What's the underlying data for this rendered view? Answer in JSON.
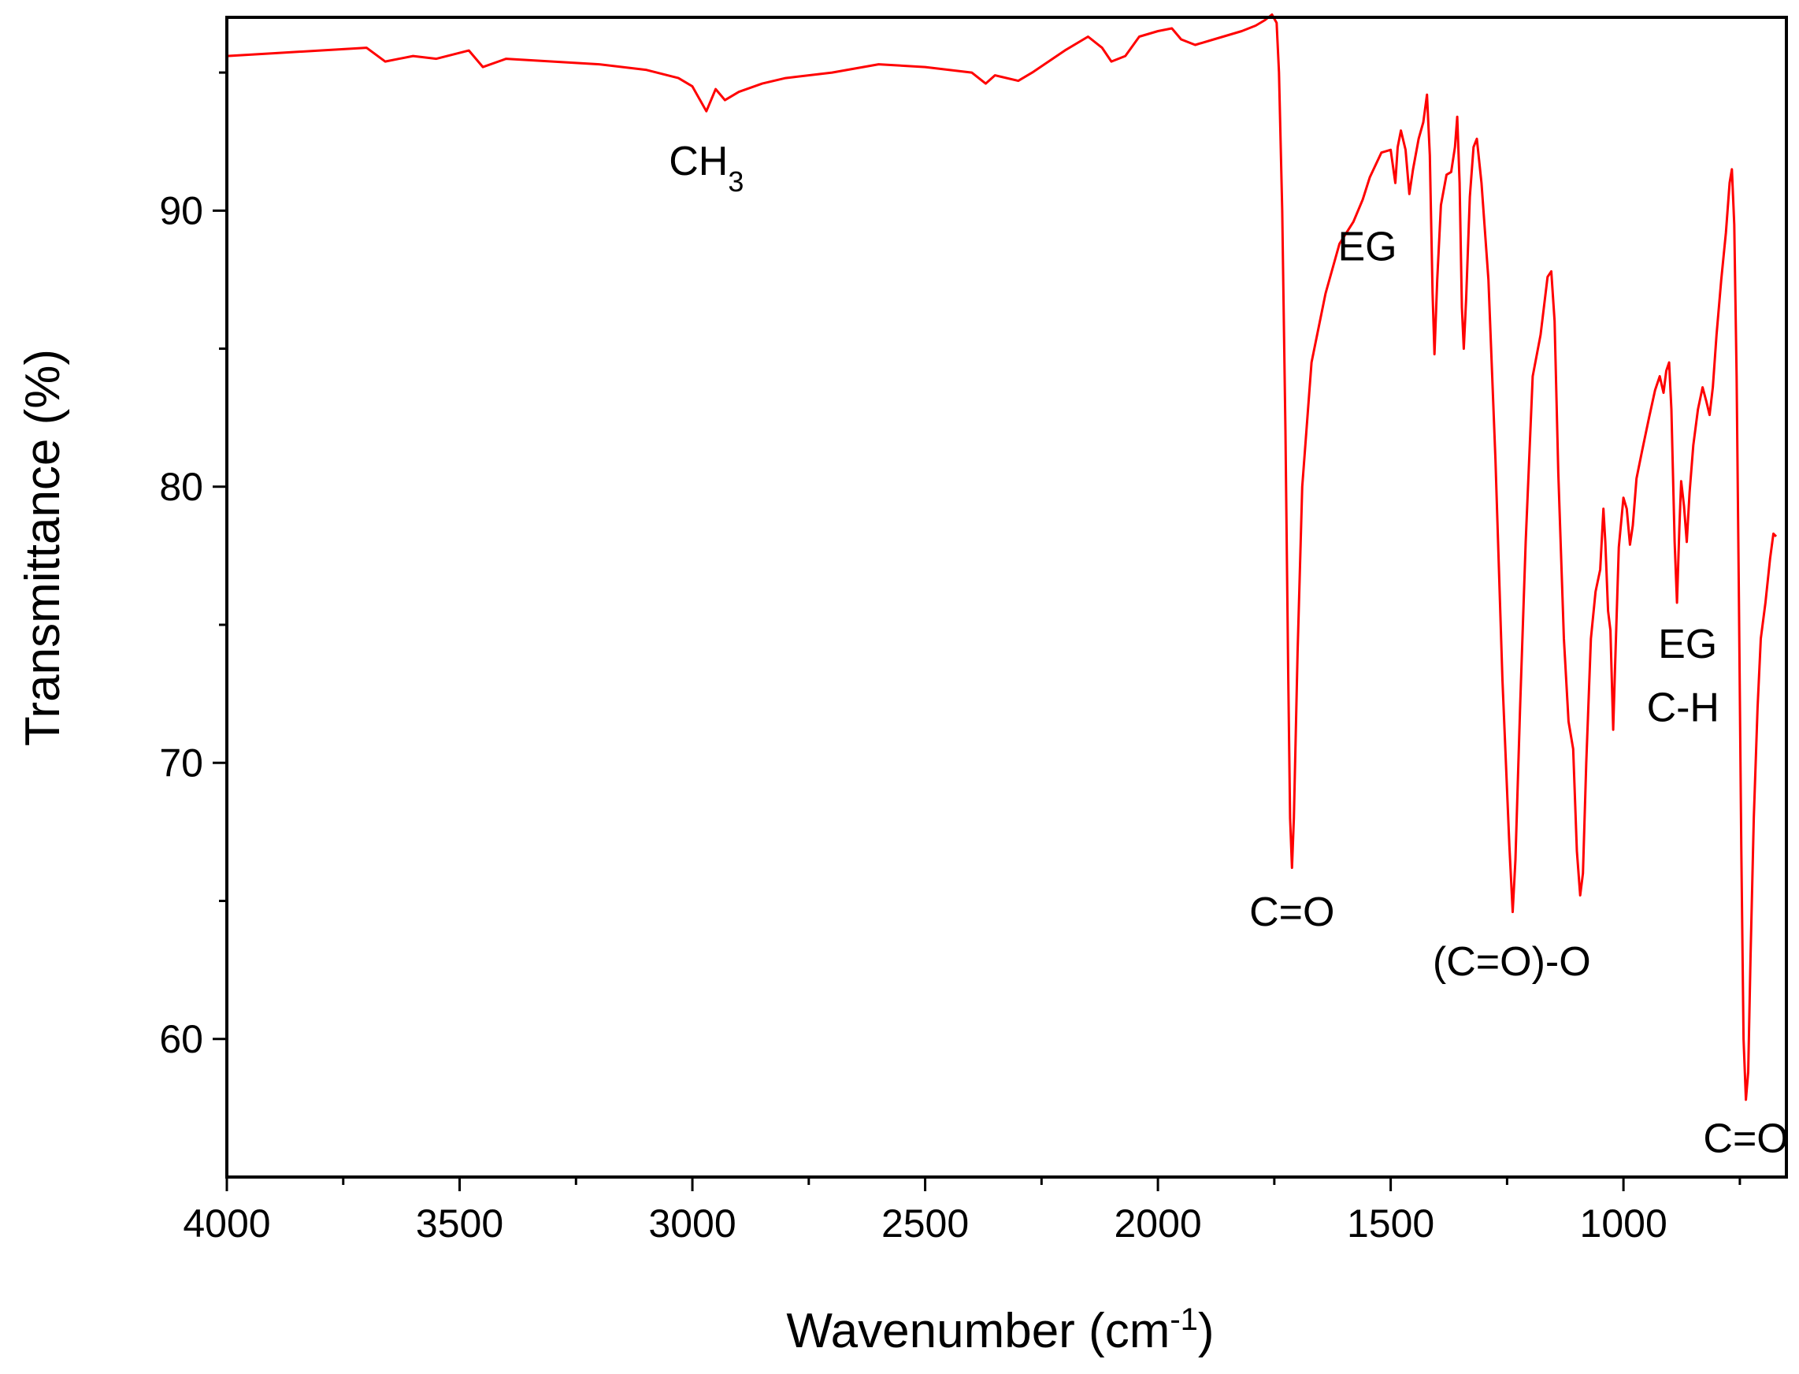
{
  "chart_data": {
    "type": "line",
    "xlabel": "Wavenumber (cm",
    "xlabel_superscript": "-1",
    "xlabel_suffix": ")",
    "ylabel": "Transmittance (%)",
    "xlim": [
      4000,
      650
    ],
    "ylim": [
      55,
      97
    ],
    "x_ticks": [
      {
        "value": 4000,
        "label": "4000"
      },
      {
        "value": 3500,
        "label": "3500"
      },
      {
        "value": 3000,
        "label": "3000"
      },
      {
        "value": 2500,
        "label": "2500"
      },
      {
        "value": 2000,
        "label": "2000"
      },
      {
        "value": 1500,
        "label": "1500"
      },
      {
        "value": 1000,
        "label": "1000"
      }
    ],
    "x_minor_ticks": [
      3750,
      3250,
      2750,
      2250,
      1750,
      1250,
      750
    ],
    "y_ticks": [
      {
        "value": 60,
        "label": "60"
      },
      {
        "value": 70,
        "label": "70"
      },
      {
        "value": 80,
        "label": "80"
      },
      {
        "value": 90,
        "label": "90"
      }
    ],
    "y_minor_ticks": [
      65,
      75,
      85,
      95
    ],
    "grid": false,
    "legend": "none",
    "series": [
      {
        "color": "#ff0000",
        "points": [
          [
            4000,
            95.6
          ],
          [
            3900,
            95.7
          ],
          [
            3800,
            95.8
          ],
          [
            3700,
            95.9
          ],
          [
            3660,
            95.4
          ],
          [
            3600,
            95.6
          ],
          [
            3550,
            95.5
          ],
          [
            3480,
            95.8
          ],
          [
            3450,
            95.2
          ],
          [
            3400,
            95.5
          ],
          [
            3300,
            95.4
          ],
          [
            3200,
            95.3
          ],
          [
            3100,
            95.1
          ],
          [
            3030,
            94.8
          ],
          [
            3000,
            94.5
          ],
          [
            2970,
            93.6
          ],
          [
            2950,
            94.4
          ],
          [
            2930,
            94.0
          ],
          [
            2900,
            94.3
          ],
          [
            2850,
            94.6
          ],
          [
            2800,
            94.8
          ],
          [
            2700,
            95.0
          ],
          [
            2600,
            95.3
          ],
          [
            2500,
            95.2
          ],
          [
            2400,
            95.0
          ],
          [
            2370,
            94.6
          ],
          [
            2350,
            94.9
          ],
          [
            2300,
            94.7
          ],
          [
            2270,
            95.0
          ],
          [
            2200,
            95.8
          ],
          [
            2150,
            96.3
          ],
          [
            2120,
            95.9
          ],
          [
            2100,
            95.4
          ],
          [
            2070,
            95.6
          ],
          [
            2040,
            96.3
          ],
          [
            2000,
            96.5
          ],
          [
            1970,
            96.6
          ],
          [
            1950,
            96.2
          ],
          [
            1920,
            96.0
          ],
          [
            1880,
            96.2
          ],
          [
            1820,
            96.5
          ],
          [
            1790,
            96.7
          ],
          [
            1770,
            96.9
          ],
          [
            1755,
            97.1
          ],
          [
            1745,
            96.8
          ],
          [
            1740,
            95.0
          ],
          [
            1733,
            90.0
          ],
          [
            1726,
            82.0
          ],
          [
            1720,
            73.0
          ],
          [
            1716,
            68.0
          ],
          [
            1712,
            66.2
          ],
          [
            1708,
            68.0
          ],
          [
            1700,
            74.0
          ],
          [
            1690,
            80.0
          ],
          [
            1670,
            84.5
          ],
          [
            1640,
            87.0
          ],
          [
            1610,
            88.8
          ],
          [
            1580,
            89.6
          ],
          [
            1560,
            90.4
          ],
          [
            1545,
            91.2
          ],
          [
            1520,
            92.1
          ],
          [
            1500,
            92.2
          ],
          [
            1490,
            91.0
          ],
          [
            1485,
            92.3
          ],
          [
            1478,
            92.9
          ],
          [
            1468,
            92.2
          ],
          [
            1460,
            90.6
          ],
          [
            1452,
            91.5
          ],
          [
            1440,
            92.6
          ],
          [
            1430,
            93.2
          ],
          [
            1422,
            94.2
          ],
          [
            1416,
            92.0
          ],
          [
            1410,
            87.0
          ],
          [
            1406,
            84.8
          ],
          [
            1400,
            87.5
          ],
          [
            1392,
            90.2
          ],
          [
            1380,
            91.3
          ],
          [
            1370,
            91.4
          ],
          [
            1362,
            92.3
          ],
          [
            1357,
            93.4
          ],
          [
            1352,
            91.0
          ],
          [
            1347,
            86.5
          ],
          [
            1343,
            85.0
          ],
          [
            1338,
            86.8
          ],
          [
            1330,
            90.5
          ],
          [
            1322,
            92.3
          ],
          [
            1315,
            92.6
          ],
          [
            1305,
            91.0
          ],
          [
            1290,
            87.5
          ],
          [
            1275,
            81.0
          ],
          [
            1260,
            73.0
          ],
          [
            1245,
            67.0
          ],
          [
            1238,
            64.6
          ],
          [
            1232,
            66.5
          ],
          [
            1222,
            72.0
          ],
          [
            1210,
            78.0
          ],
          [
            1195,
            84.0
          ],
          [
            1178,
            85.5
          ],
          [
            1163,
            87.6
          ],
          [
            1155,
            87.8
          ],
          [
            1148,
            86.0
          ],
          [
            1140,
            80.5
          ],
          [
            1128,
            74.5
          ],
          [
            1118,
            71.5
          ],
          [
            1108,
            70.5
          ],
          [
            1100,
            66.8
          ],
          [
            1093,
            65.2
          ],
          [
            1087,
            66.0
          ],
          [
            1080,
            70.0
          ],
          [
            1070,
            74.5
          ],
          [
            1060,
            76.2
          ],
          [
            1050,
            77.0
          ],
          [
            1043,
            79.2
          ],
          [
            1039,
            78.0
          ],
          [
            1033,
            75.5
          ],
          [
            1028,
            74.8
          ],
          [
            1022,
            71.2
          ],
          [
            1018,
            73.5
          ],
          [
            1010,
            77.8
          ],
          [
            1000,
            79.6
          ],
          [
            993,
            79.2
          ],
          [
            986,
            77.9
          ],
          [
            980,
            78.6
          ],
          [
            972,
            80.3
          ],
          [
            960,
            81.3
          ],
          [
            945,
            82.5
          ],
          [
            932,
            83.5
          ],
          [
            922,
            84.0
          ],
          [
            914,
            83.4
          ],
          [
            908,
            84.2
          ],
          [
            902,
            84.5
          ],
          [
            897,
            82.8
          ],
          [
            890,
            78.0
          ],
          [
            885,
            75.8
          ],
          [
            880,
            78.5
          ],
          [
            876,
            80.2
          ],
          [
            870,
            79.3
          ],
          [
            864,
            78.0
          ],
          [
            858,
            79.8
          ],
          [
            850,
            81.5
          ],
          [
            840,
            82.8
          ],
          [
            830,
            83.6
          ],
          [
            822,
            83.1
          ],
          [
            815,
            82.6
          ],
          [
            808,
            83.6
          ],
          [
            800,
            85.5
          ],
          [
            790,
            87.5
          ],
          [
            780,
            89.2
          ],
          [
            772,
            91.0
          ],
          [
            767,
            91.5
          ],
          [
            762,
            89.5
          ],
          [
            757,
            84.0
          ],
          [
            752,
            76.0
          ],
          [
            747,
            67.0
          ],
          [
            742,
            60.0
          ],
          [
            737,
            57.8
          ],
          [
            732,
            58.8
          ],
          [
            727,
            63.0
          ],
          [
            720,
            68.0
          ],
          [
            712,
            72.0
          ],
          [
            705,
            74.5
          ],
          [
            695,
            75.8
          ],
          [
            685,
            77.4
          ],
          [
            678,
            78.3
          ],
          [
            672,
            78.2
          ]
        ]
      }
    ],
    "annotations": [
      {
        "text": "CH",
        "subscript": "3",
        "x": 2970,
        "y": 91.3
      },
      {
        "text": "EG",
        "x": 1550,
        "y": 88.2
      },
      {
        "text": "C=O",
        "x": 1712,
        "y": 64.1
      },
      {
        "text": "(C=O)-O",
        "x": 1240,
        "y": 62.3
      },
      {
        "text": "EG",
        "x": 862,
        "y": 73.8
      },
      {
        "text": "C-H",
        "x": 872,
        "y": 71.5
      },
      {
        "text": "C=O",
        "x": 737,
        "y": 55.9
      }
    ]
  }
}
